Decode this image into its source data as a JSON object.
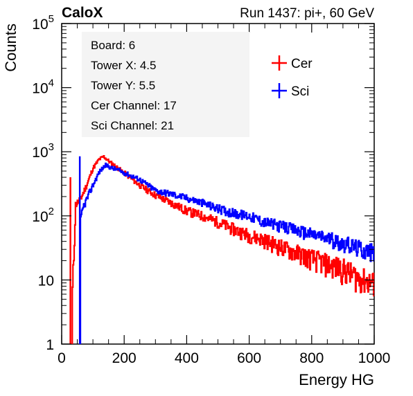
{
  "chart_data": {
    "type": "histogram",
    "title_left": "CaloX",
    "title_right": "Run 1437: pi+, 60 GeV",
    "xlabel": "Energy HG",
    "ylabel": "Counts",
    "xlim": [
      0,
      1000
    ],
    "ylim": [
      1,
      100000
    ],
    "y_scale": "log",
    "x_ticks": [
      "0",
      "200",
      "400",
      "600",
      "800",
      "1000"
    ],
    "y_ticks": [
      {
        "base": "1",
        "exp": ""
      },
      {
        "base": "10",
        "exp": ""
      },
      {
        "base": "10",
        "exp": "2"
      },
      {
        "base": "10",
        "exp": "3"
      },
      {
        "base": "10",
        "exp": "4"
      },
      {
        "base": "10",
        "exp": "5"
      }
    ],
    "grid": false,
    "info_box": [
      "Board: 6",
      "Tower X: 4.5",
      "Tower Y: 5.5",
      "Cer Channel: 17",
      "Sci Channel: 21"
    ],
    "legend_position": "top-right",
    "series": [
      {
        "name": "Cer",
        "color": "#ff0000",
        "spike": {
          "x": 28,
          "y": 400
        },
        "x": [
          34,
          45,
          60,
          80,
          100,
          120,
          135,
          150,
          175,
          200,
          250,
          300,
          350,
          400,
          450,
          500,
          550,
          600,
          650,
          700,
          750,
          800,
          850,
          900,
          950,
          1000
        ],
        "y": [
          5,
          150,
          180,
          300,
          550,
          760,
          840,
          720,
          580,
          470,
          300,
          210,
          160,
          120,
          100,
          80,
          62,
          50,
          42,
          33,
          27,
          22,
          18,
          15,
          11,
          9
        ]
      },
      {
        "name": "Sci",
        "color": "#0000ff",
        "spike": {
          "x": 58,
          "y": 850
        },
        "x": [
          60,
          70,
          80,
          100,
          120,
          140,
          160,
          180,
          200,
          250,
          300,
          350,
          400,
          450,
          500,
          550,
          600,
          650,
          700,
          750,
          800,
          850,
          900,
          950,
          1000
        ],
        "y": [
          80,
          140,
          180,
          300,
          480,
          620,
          560,
          520,
          470,
          370,
          250,
          220,
          190,
          160,
          130,
          110,
          100,
          80,
          70,
          60,
          52,
          45,
          38,
          32,
          27
        ]
      }
    ]
  }
}
